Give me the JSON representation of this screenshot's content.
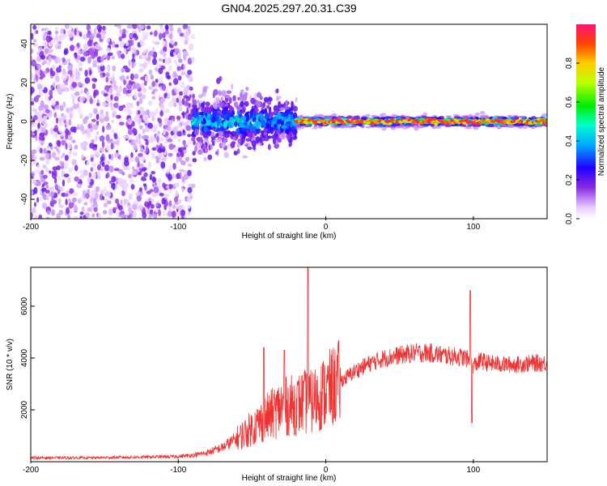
{
  "title": "GN04.2025.297.20.31.C39",
  "chart_data": [
    {
      "type": "heatmap",
      "title": "GN04.2025.297.20.31.C39",
      "xlabel": "Height of straight line (km)",
      "ylabel": "Frequency (Hz)",
      "xlim": [
        -200,
        150
      ],
      "ylim": [
        -50,
        50
      ],
      "x_ticks": [
        "-200",
        "-100",
        "0",
        "100"
      ],
      "y_ticks": [
        "-40",
        "-20",
        "0",
        "20",
        "40"
      ],
      "colorbar": {
        "label": "Normalized spectral amplitude",
        "range": [
          0,
          1
        ],
        "ticks": [
          "0.0",
          "0.2",
          "0.4",
          "0.6",
          "0.8"
        ]
      },
      "description_regions": [
        {
          "x_range": [
            -200,
            -90
          ],
          "freq_spread": 50,
          "amplitude": 0.15
        },
        {
          "x_range": [
            -90,
            -20
          ],
          "freq_spread": 12,
          "amplitude": 0.35
        },
        {
          "x_range": [
            -20,
            150
          ],
          "freq_spread": 2,
          "amplitude": 0.9
        }
      ]
    },
    {
      "type": "line",
      "xlabel": "Height of straight line (km)",
      "ylabel": "SNR (10 * v/v)",
      "xlim": [
        -200,
        150
      ],
      "ylim": [
        0,
        7500
      ],
      "x_ticks": [
        "-200",
        "-100",
        "0",
        "100"
      ],
      "y_ticks": [
        "2000",
        "4000",
        "6000"
      ],
      "color": "#ee3333",
      "series": [
        {
          "name": "SNR",
          "x": [
            -200,
            -160,
            -120,
            -100,
            -90,
            -80,
            -70,
            -60,
            -50,
            -40,
            -30,
            -20,
            -15,
            -10,
            0,
            10,
            20,
            30,
            40,
            50,
            60,
            70,
            80,
            90,
            95,
            100,
            105,
            110,
            120,
            130,
            140,
            150
          ],
          "values": [
            150,
            150,
            180,
            200,
            250,
            350,
            550,
            900,
            1300,
            1700,
            2100,
            2200,
            2300,
            2300,
            2700,
            3100,
            3500,
            3800,
            4000,
            4100,
            4200,
            4200,
            4100,
            4050,
            4000,
            3700,
            3900,
            3800,
            3750,
            3750,
            3800,
            3800
          ],
          "spikes": [
            {
              "x": -42,
              "y": 4400
            },
            {
              "x": -28,
              "y": 4300
            },
            {
              "x": -12,
              "y": 7500
            },
            {
              "x": 98,
              "y": 6600
            },
            {
              "x": 99,
              "y": 1500
            }
          ]
        }
      ]
    }
  ]
}
